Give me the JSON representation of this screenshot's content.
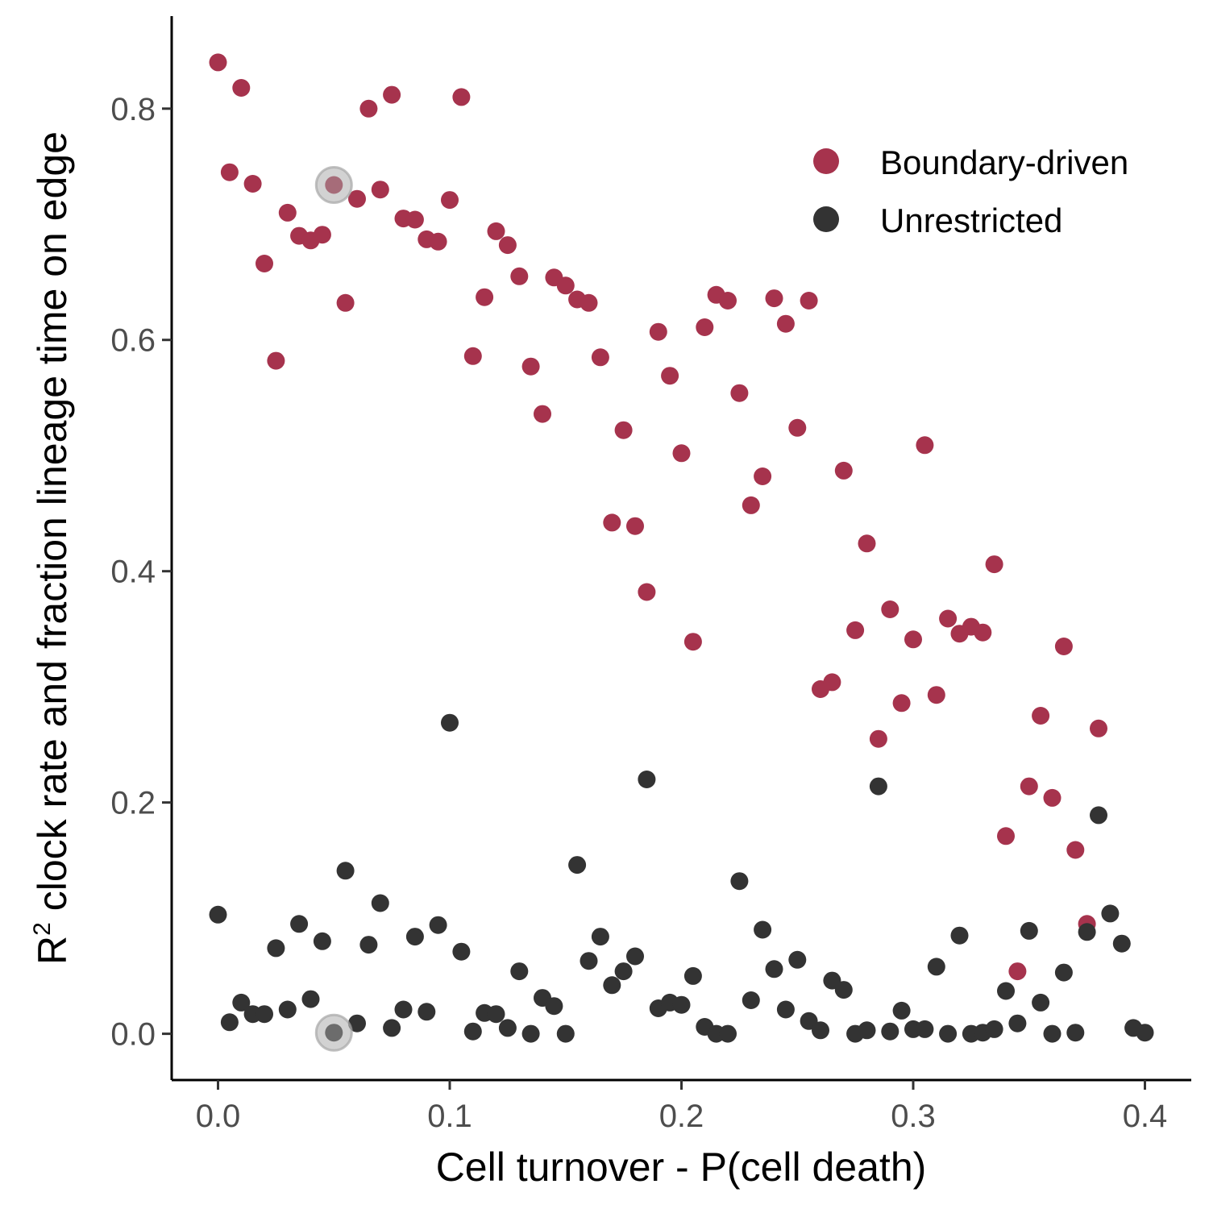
{
  "chart_data": {
    "type": "scatter",
    "xlabel": "Cell turnover - P(cell death)",
    "ylabel_main": "R",
    "ylabel_sup": "2",
    "ylabel_rest": " clock rate and fraction lineage time on edge",
    "xlim": [
      -0.02,
      0.42
    ],
    "ylim": [
      -0.04,
      0.88
    ],
    "xticks": [
      0.0,
      0.1,
      0.2,
      0.3,
      0.4
    ],
    "xtick_labels": [
      "0.0",
      "0.1",
      "0.2",
      "0.3",
      "0.4"
    ],
    "yticks": [
      0.0,
      0.2,
      0.4,
      0.6,
      0.8
    ],
    "ytick_labels": [
      "0.0",
      "0.2",
      "0.4",
      "0.6",
      "0.8"
    ],
    "legend_position": "top-right",
    "grid": false,
    "highlight_x": 0.05,
    "highlight_color": "#a6a6a6",
    "series": [
      {
        "name": "Boundary-driven",
        "color": "#a6334d",
        "points": [
          [
            0.0,
            0.84
          ],
          [
            0.005,
            0.745
          ],
          [
            0.01,
            0.818
          ],
          [
            0.015,
            0.735
          ],
          [
            0.02,
            0.666
          ],
          [
            0.025,
            0.582
          ],
          [
            0.03,
            0.71
          ],
          [
            0.035,
            0.69
          ],
          [
            0.04,
            0.686
          ],
          [
            0.045,
            0.691
          ],
          [
            0.05,
            0.734
          ],
          [
            0.055,
            0.632
          ],
          [
            0.06,
            0.722
          ],
          [
            0.065,
            0.8
          ],
          [
            0.07,
            0.73
          ],
          [
            0.075,
            0.812
          ],
          [
            0.08,
            0.705
          ],
          [
            0.085,
            0.704
          ],
          [
            0.09,
            0.687
          ],
          [
            0.095,
            0.685
          ],
          [
            0.1,
            0.721
          ],
          [
            0.105,
            0.81
          ],
          [
            0.11,
            0.586
          ],
          [
            0.115,
            0.637
          ],
          [
            0.12,
            0.694
          ],
          [
            0.125,
            0.682
          ],
          [
            0.13,
            0.655
          ],
          [
            0.135,
            0.577
          ],
          [
            0.14,
            0.536
          ],
          [
            0.145,
            0.654
          ],
          [
            0.15,
            0.647
          ],
          [
            0.155,
            0.635
          ],
          [
            0.16,
            0.632
          ],
          [
            0.165,
            0.585
          ],
          [
            0.17,
            0.442
          ],
          [
            0.175,
            0.522
          ],
          [
            0.18,
            0.439
          ],
          [
            0.185,
            0.382
          ],
          [
            0.19,
            0.607
          ],
          [
            0.195,
            0.569
          ],
          [
            0.2,
            0.502
          ],
          [
            0.205,
            0.339
          ],
          [
            0.21,
            0.611
          ],
          [
            0.215,
            0.639
          ],
          [
            0.22,
            0.634
          ],
          [
            0.225,
            0.554
          ],
          [
            0.23,
            0.457
          ],
          [
            0.235,
            0.482
          ],
          [
            0.24,
            0.636
          ],
          [
            0.245,
            0.614
          ],
          [
            0.25,
            0.524
          ],
          [
            0.255,
            0.634
          ],
          [
            0.26,
            0.298
          ],
          [
            0.265,
            0.304
          ],
          [
            0.27,
            0.487
          ],
          [
            0.275,
            0.349
          ],
          [
            0.28,
            0.424
          ],
          [
            0.285,
            0.255
          ],
          [
            0.29,
            0.367
          ],
          [
            0.295,
            0.286
          ],
          [
            0.3,
            0.341
          ],
          [
            0.305,
            0.509
          ],
          [
            0.31,
            0.293
          ],
          [
            0.315,
            0.359
          ],
          [
            0.32,
            0.346
          ],
          [
            0.325,
            0.352
          ],
          [
            0.33,
            0.347
          ],
          [
            0.335,
            0.406
          ],
          [
            0.34,
            0.171
          ],
          [
            0.345,
            0.054
          ],
          [
            0.35,
            0.214
          ],
          [
            0.355,
            0.275
          ],
          [
            0.36,
            0.204
          ],
          [
            0.365,
            0.335
          ],
          [
            0.37,
            0.159
          ],
          [
            0.375,
            0.095
          ],
          [
            0.38,
            0.264
          ]
        ]
      },
      {
        "name": "Unrestricted",
        "color": "#333333",
        "points": [
          [
            0.0,
            0.103
          ],
          [
            0.005,
            0.01
          ],
          [
            0.01,
            0.027
          ],
          [
            0.015,
            0.017
          ],
          [
            0.02,
            0.017
          ],
          [
            0.025,
            0.074
          ],
          [
            0.03,
            0.021
          ],
          [
            0.035,
            0.095
          ],
          [
            0.04,
            0.03
          ],
          [
            0.045,
            0.08
          ],
          [
            0.05,
            0.001
          ],
          [
            0.055,
            0.141
          ],
          [
            0.06,
            0.009
          ],
          [
            0.065,
            0.077
          ],
          [
            0.07,
            0.113
          ],
          [
            0.075,
            0.005
          ],
          [
            0.08,
            0.021
          ],
          [
            0.085,
            0.084
          ],
          [
            0.09,
            0.019
          ],
          [
            0.095,
            0.094
          ],
          [
            0.1,
            0.269
          ],
          [
            0.105,
            0.071
          ],
          [
            0.11,
            0.002
          ],
          [
            0.115,
            0.018
          ],
          [
            0.12,
            0.017
          ],
          [
            0.125,
            0.005
          ],
          [
            0.13,
            0.054
          ],
          [
            0.135,
            0.0
          ],
          [
            0.14,
            0.031
          ],
          [
            0.145,
            0.024
          ],
          [
            0.15,
            0.0
          ],
          [
            0.155,
            0.146
          ],
          [
            0.16,
            0.063
          ],
          [
            0.165,
            0.084
          ],
          [
            0.17,
            0.042
          ],
          [
            0.175,
            0.054
          ],
          [
            0.18,
            0.067
          ],
          [
            0.185,
            0.22
          ],
          [
            0.19,
            0.022
          ],
          [
            0.195,
            0.027
          ],
          [
            0.2,
            0.025
          ],
          [
            0.205,
            0.05
          ],
          [
            0.21,
            0.006
          ],
          [
            0.215,
            0.0
          ],
          [
            0.22,
            0.0
          ],
          [
            0.225,
            0.132
          ],
          [
            0.23,
            0.029
          ],
          [
            0.235,
            0.09
          ],
          [
            0.24,
            0.056
          ],
          [
            0.245,
            0.021
          ],
          [
            0.25,
            0.064
          ],
          [
            0.255,
            0.011
          ],
          [
            0.26,
            0.003
          ],
          [
            0.265,
            0.046
          ],
          [
            0.27,
            0.038
          ],
          [
            0.275,
            0.0
          ],
          [
            0.28,
            0.003
          ],
          [
            0.285,
            0.214
          ],
          [
            0.29,
            0.002
          ],
          [
            0.295,
            0.02
          ],
          [
            0.3,
            0.004
          ],
          [
            0.305,
            0.004
          ],
          [
            0.31,
            0.058
          ],
          [
            0.315,
            0.0
          ],
          [
            0.32,
            0.085
          ],
          [
            0.325,
            0.0
          ],
          [
            0.33,
            0.001
          ],
          [
            0.335,
            0.004
          ],
          [
            0.34,
            0.037
          ],
          [
            0.345,
            0.009
          ],
          [
            0.35,
            0.089
          ],
          [
            0.355,
            0.027
          ],
          [
            0.36,
            0.0
          ],
          [
            0.365,
            0.053
          ],
          [
            0.37,
            0.001
          ],
          [
            0.375,
            0.088
          ],
          [
            0.38,
            0.189
          ],
          [
            0.385,
            0.104
          ],
          [
            0.39,
            0.078
          ],
          [
            0.395,
            0.005
          ],
          [
            0.4,
            0.001
          ]
        ]
      }
    ]
  }
}
